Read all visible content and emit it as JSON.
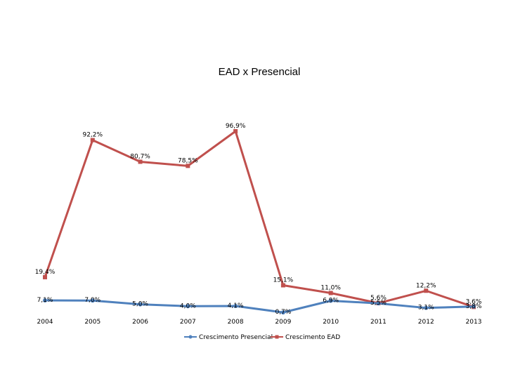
{
  "chart_data": {
    "type": "line",
    "title": "EAD x Presencial",
    "xlabel": "",
    "ylabel": "",
    "categories": [
      "2004",
      "2005",
      "2006",
      "2007",
      "2008",
      "2009",
      "2010",
      "2011",
      "2012",
      "2013"
    ],
    "ylim": [
      0,
      100
    ],
    "grid": false,
    "legend": "bottom",
    "series": [
      {
        "name": "Crescimento Presencial",
        "color": "#4f81bd",
        "values": [
          7.1,
          7.0,
          5.0,
          4.0,
          4.1,
          0.7,
          6.9,
          5.5,
          3.1,
          3.8
        ],
        "labels": [
          "7,1%",
          "7,0%",
          "5,0%",
          "4,0%",
          "4,1%",
          "0,7%",
          "6,9%",
          "5,5%",
          "3,1%",
          "3,8%"
        ]
      },
      {
        "name": "Crescimento EAD",
        "color": "#c0504d",
        "values": [
          19.4,
          92.2,
          80.7,
          78.5,
          96.9,
          15.1,
          11.0,
          5.6,
          12.2,
          3.6
        ],
        "labels": [
          "19,4%",
          "92,2%",
          "80,7%",
          "78,5%",
          "96,9%",
          "15,1%",
          "11,0%",
          "5,6%",
          "12,2%",
          "3,6%"
        ]
      }
    ]
  }
}
